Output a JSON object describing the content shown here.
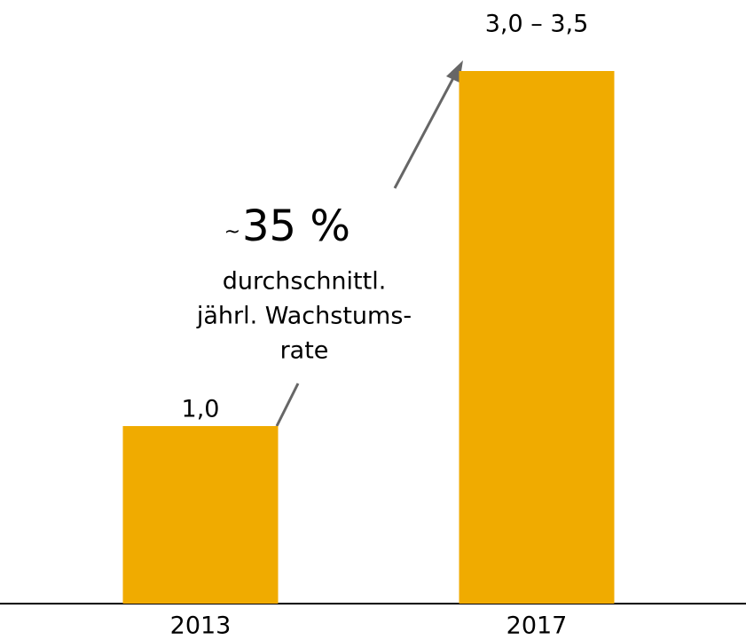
{
  "chart_data": {
    "type": "bar",
    "categories": [
      "2013",
      "2017"
    ],
    "values": [
      1.0,
      3.0
    ],
    "value_labels": [
      "1,0",
      "3,0 – 3,5"
    ],
    "color": "#f0ab00",
    "ylim": [
      0,
      3.4
    ],
    "annotation": {
      "tilde": "~",
      "headline": "35 %",
      "lines": [
        "durchschnittl.",
        "jährl. Wachstums-",
        "rate"
      ]
    }
  }
}
